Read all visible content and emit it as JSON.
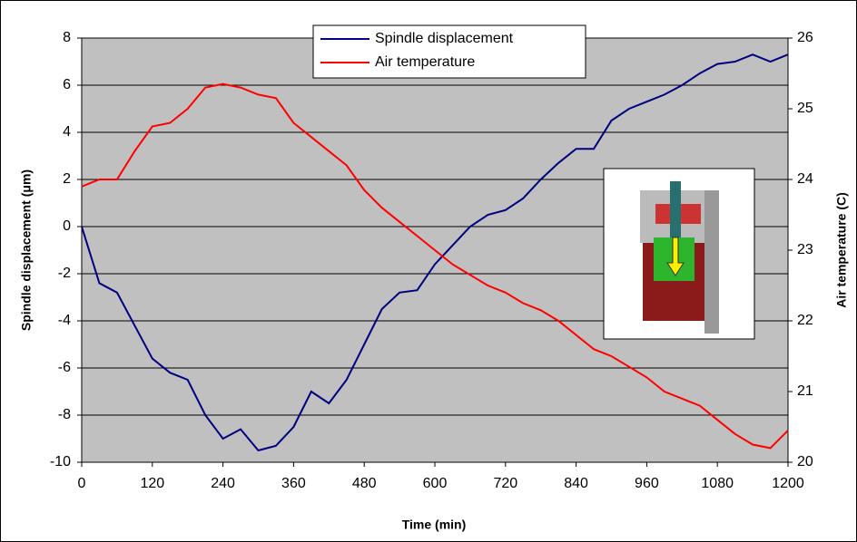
{
  "chart_data": {
    "type": "line",
    "x_label": "Time (min)",
    "y_label": "Spindle displacement (μm)",
    "y2_label": "Air temperature (C)",
    "x": [
      0,
      30,
      60,
      90,
      120,
      150,
      180,
      210,
      240,
      270,
      300,
      330,
      360,
      390,
      420,
      450,
      480,
      510,
      540,
      570,
      600,
      630,
      660,
      690,
      720,
      750,
      780,
      810,
      840,
      870,
      900,
      930,
      960,
      990,
      1020,
      1050,
      1080,
      1110,
      1140,
      1170,
      1200
    ],
    "series": [
      {
        "name": "Spindle displacement",
        "color": "#000080",
        "axis": "y",
        "values": [
          0,
          -2.4,
          -2.8,
          -4.2,
          -5.6,
          -6.2,
          -6.5,
          -8.0,
          -9.0,
          -8.6,
          -9.5,
          -9.3,
          -8.5,
          -7.0,
          -7.5,
          -6.5,
          -5.0,
          -3.5,
          -2.8,
          -2.7,
          -1.6,
          -0.8,
          0.0,
          0.5,
          0.7,
          1.2,
          2.0,
          2.7,
          3.3,
          3.3,
          4.5,
          5.0,
          5.3,
          5.6,
          6.0,
          6.5,
          6.9,
          7.0,
          7.3,
          7.0,
          7.3
        ]
      },
      {
        "name": "Air temperature",
        "color": "#ff0000",
        "axis": "y2",
        "values": [
          23.9,
          24.0,
          24.0,
          24.4,
          24.75,
          24.8,
          25.0,
          25.3,
          25.35,
          25.3,
          25.2,
          25.15,
          24.8,
          24.6,
          24.4,
          24.2,
          23.85,
          23.6,
          23.4,
          23.2,
          23.0,
          22.8,
          22.65,
          22.5,
          22.4,
          22.25,
          22.15,
          22.0,
          21.8,
          21.6,
          21.5,
          21.35,
          21.2,
          21.0,
          20.9,
          20.8,
          20.6,
          20.4,
          20.25,
          20.2,
          20.45
        ]
      }
    ],
    "xlim": [
      0,
      1200
    ],
    "xticks": [
      0,
      120,
      240,
      360,
      480,
      600,
      720,
      840,
      960,
      1080,
      1200
    ],
    "ylim": [
      -10,
      8
    ],
    "yticks": [
      -10,
      -8,
      -6,
      -4,
      -2,
      0,
      2,
      4,
      6,
      8
    ],
    "y2lim": [
      20,
      26
    ],
    "y2ticks": [
      20,
      21,
      22,
      23,
      24,
      25,
      26
    ],
    "grid": true,
    "plot_background": "#c0c0c0",
    "legend": "top"
  }
}
